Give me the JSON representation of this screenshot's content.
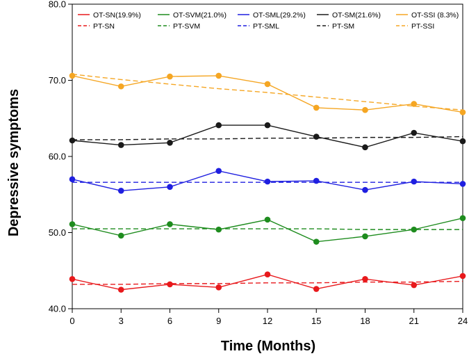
{
  "chart_data": {
    "type": "line",
    "title": "",
    "xlabel": "Time (Months)",
    "ylabel": "Depressive symptoms",
    "x": [
      0,
      3,
      6,
      9,
      12,
      15,
      18,
      21,
      24
    ],
    "xlim": [
      0,
      24
    ],
    "ylim": [
      40,
      80
    ],
    "x_tick_labels": [
      "0",
      "3",
      "6",
      "9",
      "12",
      "15",
      "18",
      "21",
      "24"
    ],
    "y_tick_labels": [
      "40.0",
      "50.0",
      "60.0",
      "70.0",
      "80.0"
    ],
    "y_ticks": [
      40,
      50,
      60,
      70,
      80
    ],
    "grid": false,
    "legend_position": "top",
    "observed_series": [
      {
        "name": "OT-SN(19.9%)",
        "color": "#e8191c",
        "values": [
          43.9,
          42.5,
          43.2,
          42.8,
          44.5,
          42.6,
          43.9,
          43.1,
          44.3
        ]
      },
      {
        "name": "OT-SVM(21.0%)",
        "color": "#1e8c1e",
        "values": [
          51.1,
          49.6,
          51.1,
          50.4,
          51.7,
          48.8,
          49.5,
          50.4,
          51.9
        ]
      },
      {
        "name": "OT-SML(29.2%)",
        "color": "#1f1fe0",
        "values": [
          57.0,
          55.5,
          56.0,
          58.1,
          56.7,
          56.8,
          55.6,
          56.7,
          56.4
        ]
      },
      {
        "name": "OT-SM(21.6%)",
        "color": "#1a1a1a",
        "values": [
          62.1,
          61.5,
          61.8,
          64.1,
          64.1,
          62.6,
          61.2,
          63.1,
          62.0
        ]
      },
      {
        "name": "OT-SSI (8.3%)",
        "color": "#f5a623",
        "values": [
          70.6,
          69.2,
          70.5,
          70.6,
          69.5,
          66.4,
          66.1,
          66.9,
          65.8
        ]
      }
    ],
    "predicted_series": [
      {
        "name": "PT-SN",
        "color": "#e8191c",
        "values": [
          43.2,
          43.2,
          43.3,
          43.3,
          43.4,
          43.4,
          43.5,
          43.5,
          43.6
        ]
      },
      {
        "name": "PT-SVM",
        "color": "#1e8c1e",
        "values": [
          50.5,
          50.5,
          50.5,
          50.5,
          50.5,
          50.5,
          50.4,
          50.4,
          50.4
        ]
      },
      {
        "name": "PT-SML",
        "color": "#1f1fe0",
        "values": [
          56.6,
          56.6,
          56.6,
          56.6,
          56.6,
          56.6,
          56.6,
          56.6,
          56.6
        ]
      },
      {
        "name": "PT-SM",
        "color": "#1a1a1a",
        "values": [
          62.2,
          62.2,
          62.3,
          62.3,
          62.4,
          62.4,
          62.5,
          62.5,
          62.6
        ]
      },
      {
        "name": "PT-SSI",
        "color": "#f5a623",
        "values": [
          70.8,
          70.1,
          69.5,
          68.9,
          68.4,
          67.8,
          67.2,
          66.6,
          66.1
        ]
      }
    ]
  }
}
